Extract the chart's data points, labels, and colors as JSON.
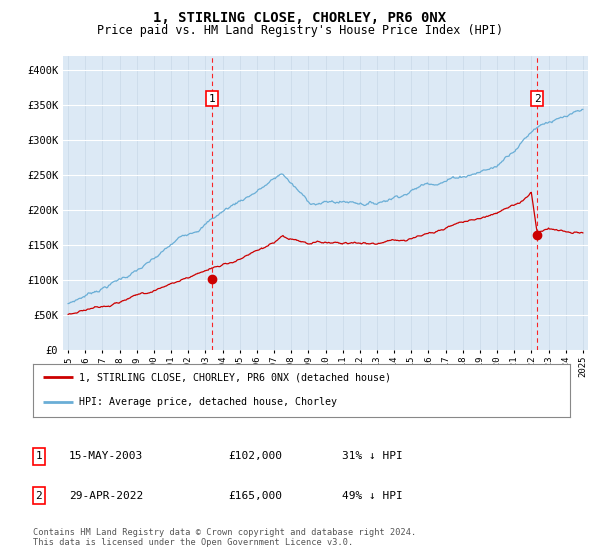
{
  "title": "1, STIRLING CLOSE, CHORLEY, PR6 0NX",
  "subtitle": "Price paid vs. HM Land Registry's House Price Index (HPI)",
  "background_color": "#dce9f5",
  "plot_bg_color": "#dce9f5",
  "ylim": [
    0,
    420000
  ],
  "yticks": [
    0,
    50000,
    100000,
    150000,
    200000,
    250000,
    300000,
    350000,
    400000
  ],
  "ytick_labels": [
    "£0",
    "£50K",
    "£100K",
    "£150K",
    "£200K",
    "£250K",
    "£300K",
    "£350K",
    "£400K"
  ],
  "sale1_price": 102000,
  "sale1_x": 2003.37,
  "sale2_price": 165000,
  "sale2_x": 2022.33,
  "hpi_color": "#6aaed6",
  "sale_color": "#cc0000",
  "legend_entry1": "1, STIRLING CLOSE, CHORLEY, PR6 0NX (detached house)",
  "legend_entry2": "HPI: Average price, detached house, Chorley",
  "footnote": "Contains HM Land Registry data © Crown copyright and database right 2024.\nThis data is licensed under the Open Government Licence v3.0.",
  "table": [
    {
      "num": "1",
      "date": "15-MAY-2003",
      "price": "£102,000",
      "hpi": "31% ↓ HPI"
    },
    {
      "num": "2",
      "date": "29-APR-2022",
      "price": "£165,000",
      "hpi": "49% ↓ HPI"
    }
  ]
}
